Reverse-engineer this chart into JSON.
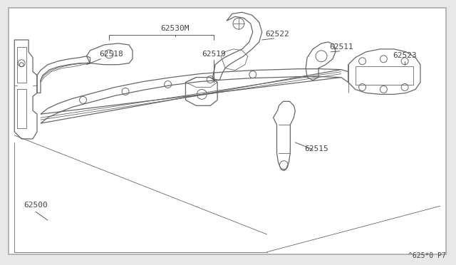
{
  "bg_color": "#e8e8e8",
  "border_color": "#aaaaaa",
  "line_color": "#666666",
  "label_color": "#444444",
  "watermark": "^625*0 P7",
  "label_fontsize": 8.0,
  "watermark_fontsize": 7.0,
  "fig_width": 6.4,
  "fig_height": 3.72,
  "dpi": 100
}
